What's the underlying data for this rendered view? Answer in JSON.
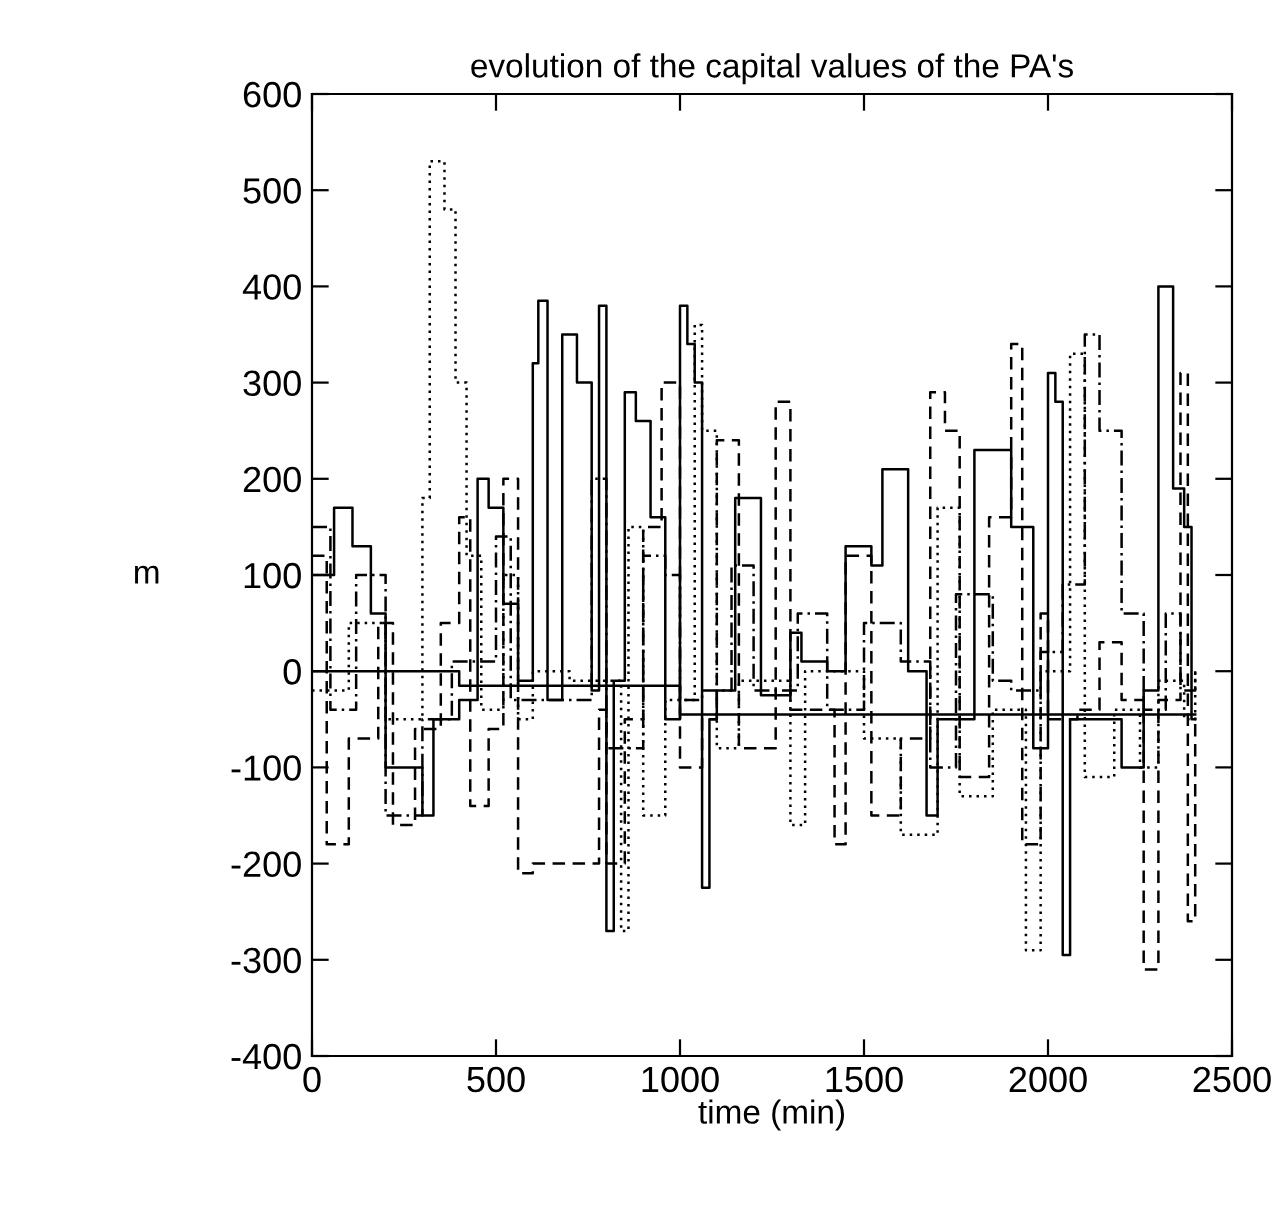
{
  "chart_data": {
    "type": "step",
    "title": "evolution of the capital values of the PA's",
    "xlabel": "time (min)",
    "ylabel": "m",
    "xlim": [
      0,
      2500
    ],
    "xticks": [
      0,
      500,
      1000,
      1500,
      2000,
      2500
    ],
    "ylim": [
      -400,
      600
    ],
    "yticks": [
      -400,
      -300,
      -200,
      -100,
      0,
      100,
      200,
      300,
      400,
      500,
      600
    ],
    "grid": false,
    "legend": false,
    "series": [
      {
        "color": "#000000",
        "line_style": "solid",
        "x": [
          0,
          60,
          110,
          160,
          200,
          260,
          300,
          330,
          400,
          450,
          480,
          520,
          560,
          600,
          615,
          640,
          680,
          720,
          760,
          780,
          800,
          820,
          850,
          880,
          920,
          960,
          1000,
          1020,
          1040,
          1060,
          1080,
          1100,
          1150,
          1220,
          1300,
          1330,
          1400,
          1450,
          1520,
          1550,
          1620,
          1670,
          1700,
          1800,
          1900,
          1960,
          2000,
          2020,
          2040,
          2060,
          2100,
          2200,
          2260,
          2300,
          2340,
          2370,
          2390,
          2400
        ],
        "values": [
          100,
          170,
          130,
          60,
          -100,
          -100,
          -150,
          -50,
          -30,
          200,
          170,
          70,
          -10,
          320,
          385,
          -30,
          350,
          300,
          -20,
          380,
          -270,
          -10,
          290,
          260,
          160,
          -50,
          380,
          340,
          300,
          -225,
          -50,
          -20,
          180,
          -25,
          40,
          10,
          0,
          130,
          110,
          210,
          0,
          -150,
          -50,
          230,
          150,
          -80,
          310,
          280,
          -295,
          -50,
          -50,
          -100,
          -20,
          400,
          190,
          150,
          -50,
          -50
        ]
      },
      {
        "color": "#000000",
        "line_style": "dashed",
        "x": [
          0,
          40,
          100,
          180,
          220,
          280,
          350,
          400,
          430,
          480,
          520,
          560,
          600,
          780,
          800,
          850,
          900,
          950,
          1000,
          1060,
          1100,
          1160,
          1260,
          1300,
          1420,
          1450,
          1520,
          1560,
          1600,
          1680,
          1720,
          1760,
          1840,
          1900,
          1930,
          1980,
          2000,
          2080,
          2140,
          2200,
          2260,
          2300,
          2360,
          2380,
          2400
        ],
        "values": [
          120,
          -180,
          -70,
          50,
          -160,
          -60,
          50,
          160,
          -140,
          -60,
          200,
          -210,
          -200,
          -40,
          -200,
          -50,
          150,
          300,
          -100,
          -50,
          240,
          -80,
          280,
          -40,
          -180,
          120,
          -150,
          -150,
          -70,
          290,
          250,
          -110,
          160,
          340,
          -180,
          60,
          -50,
          -40,
          30,
          -30,
          -310,
          -30,
          310,
          -260,
          -50
        ]
      },
      {
        "color": "#000000",
        "line_style": "dotted",
        "x": [
          0,
          100,
          200,
          300,
          320,
          360,
          390,
          420,
          460,
          520,
          560,
          600,
          700,
          840,
          860,
          900,
          960,
          1040,
          1060,
          1100,
          1160,
          1300,
          1340,
          1500,
          1600,
          1700,
          1760,
          1850,
          1940,
          1980,
          2060,
          2100,
          2180,
          2250,
          2300,
          2370,
          2400
        ],
        "values": [
          -20,
          50,
          -50,
          180,
          530,
          480,
          300,
          120,
          -40,
          100,
          -50,
          0,
          -10,
          -270,
          150,
          -150,
          -30,
          360,
          250,
          -80,
          -10,
          -160,
          0,
          -70,
          -170,
          170,
          -130,
          -40,
          -290,
          0,
          330,
          -110,
          -40,
          -100,
          -10,
          -50,
          0
        ]
      },
      {
        "color": "#000000",
        "line_style": "dashdot",
        "x": [
          0,
          50,
          120,
          200,
          300,
          380,
          500,
          540,
          700,
          760,
          800,
          900,
          960,
          1000,
          1060,
          1140,
          1200,
          1320,
          1400,
          1500,
          1600,
          1680,
          1750,
          1850,
          1900,
          1980,
          2040,
          2100,
          2140,
          2200,
          2260,
          2320,
          2360,
          2400
        ],
        "values": [
          150,
          -40,
          100,
          -150,
          -50,
          10,
          140,
          -30,
          -30,
          200,
          -80,
          120,
          100,
          -30,
          -20,
          110,
          -20,
          60,
          -40,
          50,
          10,
          -100,
          80,
          -10,
          -20,
          20,
          90,
          350,
          250,
          60,
          -40,
          60,
          -20,
          0
        ]
      },
      {
        "color": "#000000",
        "line_style": "solid",
        "x": [
          0,
          400,
          1000,
          2400
        ],
        "values": [
          0,
          -15,
          -45,
          -45
        ]
      }
    ]
  }
}
